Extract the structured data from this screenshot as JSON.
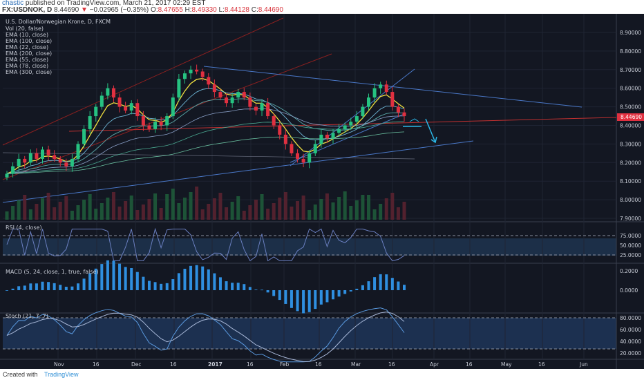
{
  "header": {
    "user": "chastic",
    "published_text": "published on TradingView.com, March 21, 2017 02:29 EST",
    "symbol": "FX:USDNOK, D",
    "price": "8.44690",
    "arrow": "▼",
    "change": "−0.02965 (−0.35%)",
    "o_label": "O:",
    "o_value": "8.47655",
    "h_label": "H:",
    "h_value": "8.49330",
    "l_label": "L:",
    "l_value": "8.44128",
    "c_label": "C:",
    "c_value": "8.44690"
  },
  "legend": {
    "title": "U.S. Dollar/Norwegian Krone, D, FXCM",
    "indicators": [
      "Vol (20, false)",
      "EMA (10, close)",
      "EMA (100, close)",
      "EMA (22, close)",
      "EMA (200, close)",
      "EMA (55, close)",
      "EMA (78, close)",
      "EMA (300, close)"
    ]
  },
  "panes": {
    "rsi_label": "RSI (4, close)",
    "macd_label": "MACD (5, 24, close, 1, true, false)",
    "stoch_label": "Stoch (21, 7, 7)"
  },
  "price_axis": [
    "8.90000",
    "8.80000",
    "8.70000",
    "8.60000",
    "8.50000",
    "8.40000",
    "8.30000",
    "8.20000",
    "8.10000",
    "8.00000",
    "7.90000"
  ],
  "last_price_tag": "8.44690",
  "rsi_axis": [
    "75.0000",
    "50.0000",
    "25.0000"
  ],
  "macd_axis": [
    "0.2000",
    "0.0000"
  ],
  "stoch_axis": [
    "80.0000",
    "60.0000",
    "40.0000",
    "20.0000"
  ],
  "time_axis": [
    "Nov",
    "16",
    "Dec",
    "16",
    "2017",
    "16",
    "Feb",
    "16",
    "Mar",
    "16",
    "Apr",
    "16",
    "May",
    "16",
    "Jun"
  ],
  "footer": {
    "created_with": "Created with",
    "brand": "TradingView"
  },
  "colors": {
    "background": "#131722",
    "up": "#26c281",
    "down": "#e03040",
    "ema_fast": "#f0e040",
    "trendline": "#4a78c8",
    "channel": "#8a2020",
    "arrow": "#2ab8e8"
  },
  "chart_data": {
    "type": "candlestick",
    "title": "U.S. Dollar/Norwegian Krone, D, FXCM",
    "ylim": [
      7.87,
      8.95
    ],
    "close_path": [
      8.14,
      8.18,
      8.22,
      8.2,
      8.25,
      8.22,
      8.27,
      8.24,
      8.22,
      8.2,
      8.18,
      8.22,
      8.3,
      8.38,
      8.45,
      8.5,
      8.56,
      8.6,
      8.55,
      8.5,
      8.48,
      8.52,
      8.45,
      8.4,
      8.38,
      8.42,
      8.4,
      8.45,
      8.55,
      8.65,
      8.68,
      8.7,
      8.69,
      8.66,
      8.62,
      8.58,
      8.55,
      8.52,
      8.55,
      8.58,
      8.55,
      8.5,
      8.48,
      8.52,
      8.45,
      8.4,
      8.35,
      8.3,
      8.25,
      8.22,
      8.2,
      8.25,
      8.3,
      8.35,
      8.33,
      8.36,
      8.38,
      8.4,
      8.42,
      8.45,
      8.5,
      8.55,
      8.6,
      8.62,
      8.58,
      8.5,
      8.47,
      8.45
    ],
    "last_close": 8.4469,
    "annotations": [
      "projected move down toward 8.33"
    ]
  }
}
